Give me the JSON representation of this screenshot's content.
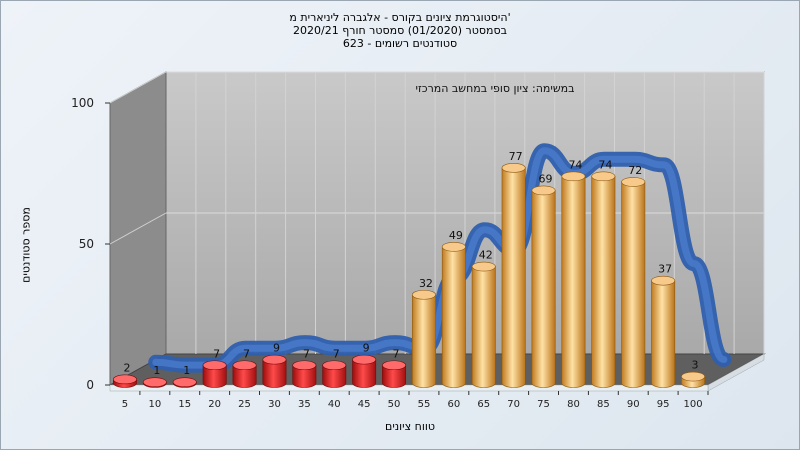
{
  "chart_data": {
    "type": "bar",
    "title_lines": [
      "היסטוגרמת ציונים בקורס - אלגברה ליניארית מ'",
      "בסמסטר (01/2020) סמסטר חורף 2020/21",
      "623 - סטודנטים רשומים"
    ],
    "subtitle": "במשימה: ציון סופי במחשב המרכזי",
    "xlabel": "טווח ציונים",
    "ylabel": "מספר סטודנטים",
    "ylim": [
      0,
      100
    ],
    "yticks": [
      0,
      50,
      100
    ],
    "grid": true,
    "categories": [
      "5",
      "10",
      "15",
      "20",
      "25",
      "30",
      "35",
      "40",
      "45",
      "50",
      "55",
      "60",
      "65",
      "70",
      "75",
      "80",
      "85",
      "90",
      "95",
      "100"
    ],
    "values": [
      2,
      1,
      1,
      7,
      7,
      9,
      7,
      7,
      9,
      7,
      32,
      49,
      42,
      77,
      69,
      74,
      74,
      72,
      37,
      3
    ],
    "series": [
      {
        "name": "",
        "values": [
          2,
          1,
          1,
          7,
          7,
          9,
          7,
          7,
          9,
          7,
          32,
          49,
          42,
          77,
          69,
          74,
          74,
          72,
          37,
          3
        ]
      }
    ],
    "trend_line": [
      2,
      1,
      1,
      7,
      7,
      9,
      7,
      7,
      9,
      7,
      32,
      49,
      42,
      77,
      69,
      74,
      74,
      72,
      37,
      3
    ],
    "fail_threshold": 55,
    "colors": {
      "fail_bar": "#e21a1a",
      "pass_bar": "#f0b055",
      "trend": "#3a6cc0",
      "wall": "#b9b9b9",
      "side_wall": "#8a8a8a",
      "floor": "#5a5a5a"
    }
  }
}
